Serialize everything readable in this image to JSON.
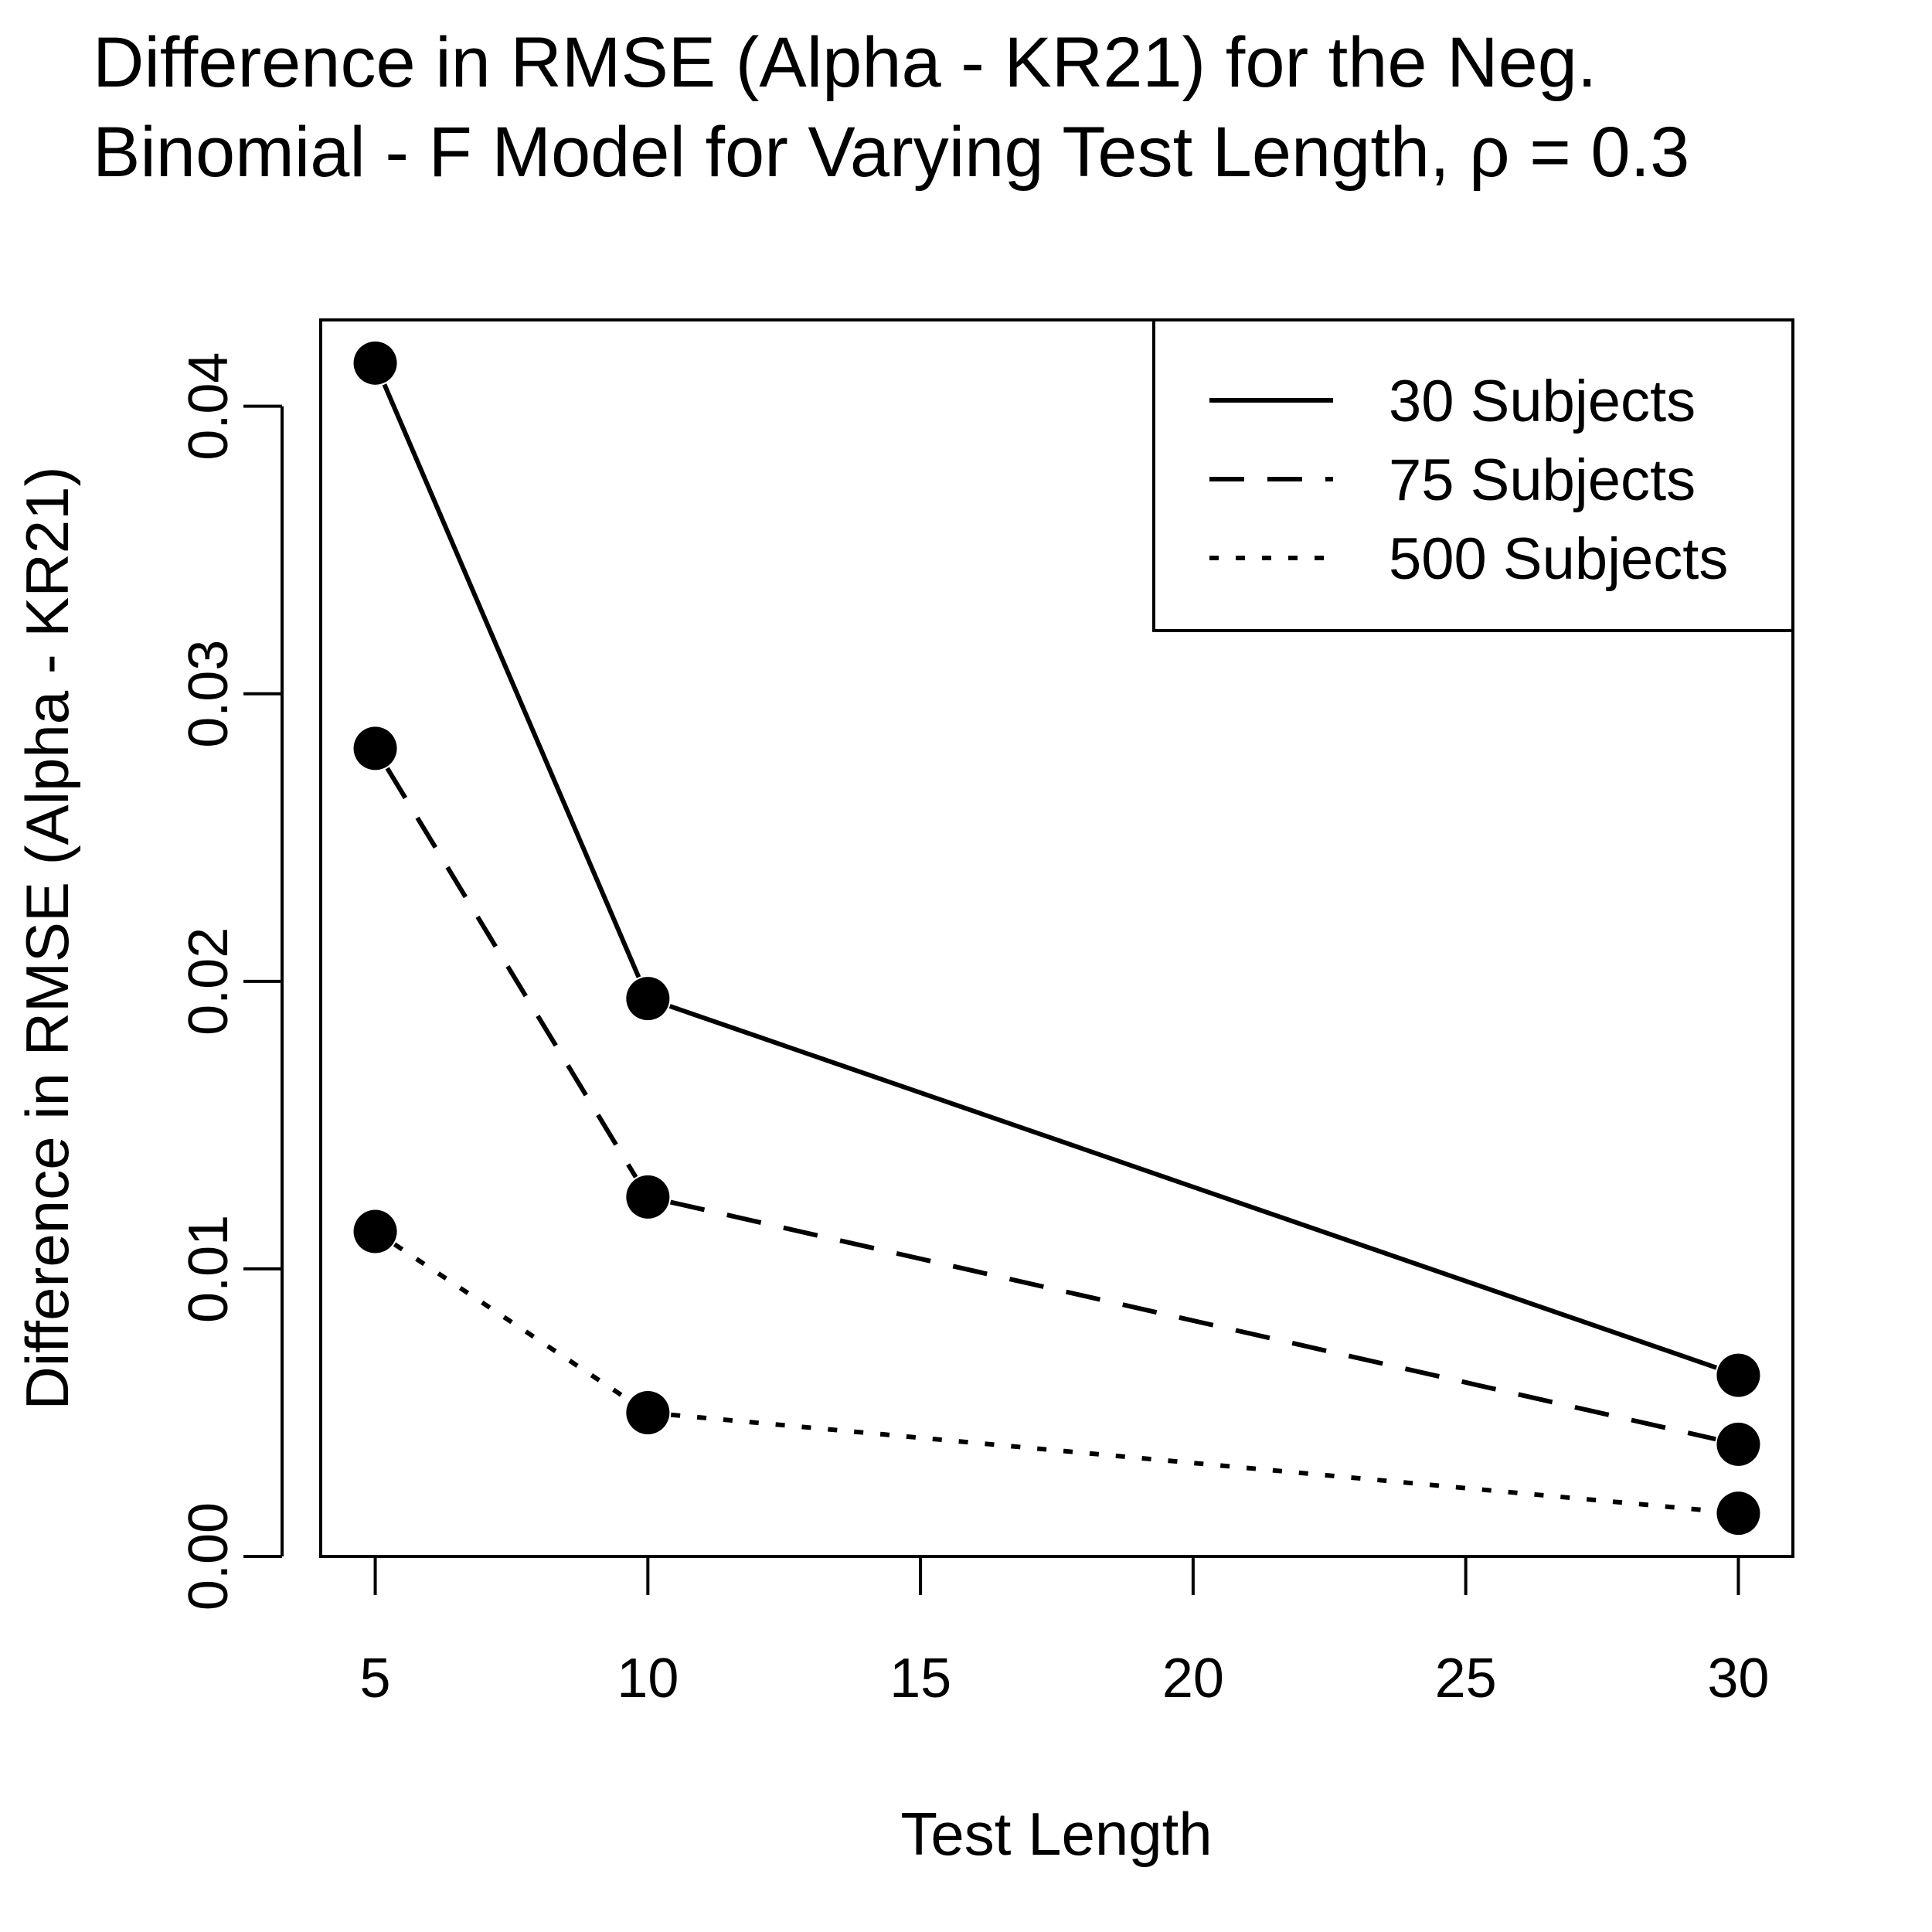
{
  "chart_data": {
    "type": "line",
    "title_lines": [
      "Difference in RMSE (Alpha - KR21) for the Neg.",
      "Binomial - F Model for Varying Test Length, ρ = 0.3"
    ],
    "xlabel": "Test Length",
    "ylabel": "Difference in RMSE (Alpha - KR21)",
    "xlim": [
      4,
      31
    ],
    "ylim": [
      0,
      0.043
    ],
    "x_ticks": [
      5,
      10,
      15,
      20,
      25,
      30
    ],
    "y_ticks": [
      0.0,
      0.01,
      0.02,
      0.03,
      0.04
    ],
    "x_tick_labels": [
      "5",
      "10",
      "15",
      "20",
      "25",
      "30"
    ],
    "y_tick_labels": [
      "0.00",
      "0.01",
      "0.02",
      "0.03",
      "0.04"
    ],
    "x": [
      5,
      10,
      30
    ],
    "series": [
      {
        "name": "30 Subjects",
        "values": [
          0.0415,
          0.0194,
          0.0063
        ],
        "line_style": "solid"
      },
      {
        "name": "75 Subjects",
        "values": [
          0.0281,
          0.0125,
          0.0039
        ],
        "line_style": "dashed"
      },
      {
        "name": "500 Subjects",
        "values": [
          0.0113,
          0.005,
          0.0015
        ],
        "line_style": "dotted"
      }
    ],
    "grid": false,
    "legend_position": "top-right",
    "colors": {
      "line": "#000000",
      "background": "#ffffff"
    }
  }
}
